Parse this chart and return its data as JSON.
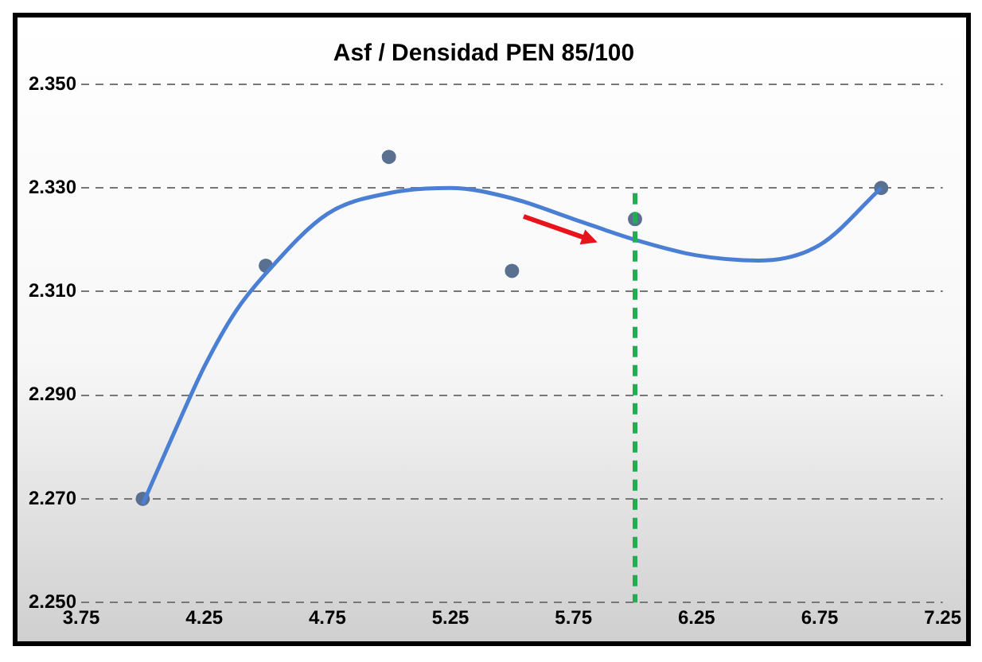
{
  "chart_data": {
    "type": "scatter",
    "title": "Asf / Densidad PEN 85/100",
    "xlim": [
      3.75,
      7.25
    ],
    "xticks": [
      3.75,
      4.25,
      4.75,
      5.25,
      5.75,
      6.25,
      6.75,
      7.25
    ],
    "ylim": [
      2.25,
      2.35
    ],
    "yticks": [
      {
        "value": 2.25,
        "label": "2.250"
      },
      {
        "value": 2.27,
        "label": "2.270"
      },
      {
        "value": 2.29,
        "label": "2.290"
      },
      {
        "value": 2.31,
        "label": "2.310"
      },
      {
        "value": 2.33,
        "label": "2.330"
      },
      {
        "value": 2.35,
        "label": "2.350"
      }
    ],
    "grid": "y",
    "legend": false,
    "marker": "circle",
    "series": [
      {
        "type": "scatter",
        "color": "#5a7090",
        "x": [
          4.0,
          4.5,
          5.0,
          5.5,
          6.0,
          7.0
        ],
        "values": [
          2.27,
          2.315,
          2.336,
          2.314,
          2.324,
          2.33
        ]
      },
      {
        "type": "line",
        "color": "#4a7fd4",
        "marker": "none",
        "x": [
          4.0,
          4.125,
          4.25,
          4.375,
          4.5,
          4.75,
          5.0,
          5.25,
          5.5,
          5.75,
          6.0,
          6.25,
          6.5,
          6.75,
          7.0
        ],
        "values": [
          2.269,
          2.2825,
          2.2955,
          2.306,
          2.3135,
          2.325,
          2.329,
          2.33,
          2.328,
          2.324,
          2.32,
          2.317,
          2.316,
          2.319,
          2.33
        ]
      }
    ],
    "ref_lines": [
      {
        "axis": "x",
        "value": 6,
        "color": "#1fae50",
        "line_style": "dashed"
      }
    ]
  }
}
